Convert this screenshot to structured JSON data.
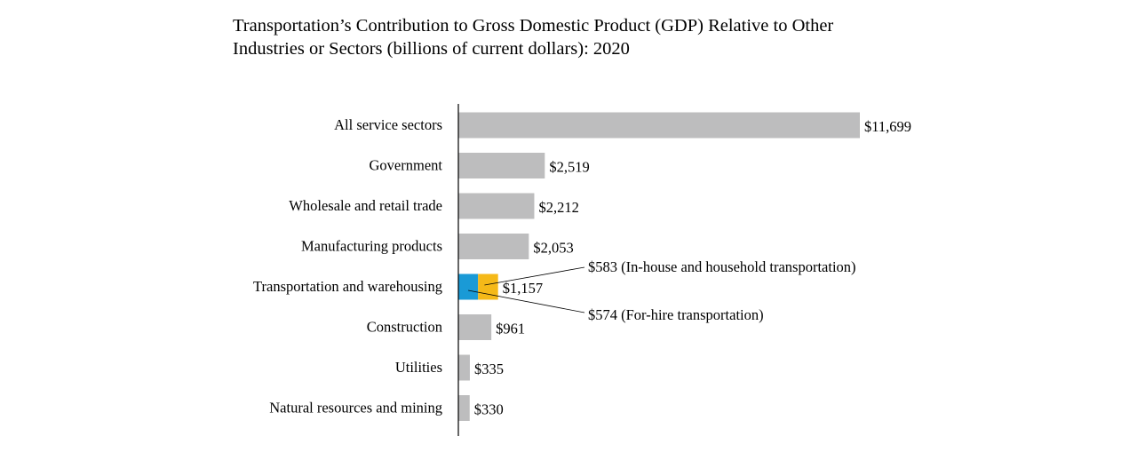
{
  "title_lines": [
    "Transportation’s Contribution to Gross Domestic Product (GDP) Relative to Other",
    "Industries or Sectors (billions of current dollars): 2020"
  ],
  "chart_data": {
    "type": "bar",
    "orientation": "horizontal",
    "title": "Transportation’s Contribution to Gross Domestic Product (GDP) Relative to Other Industries or Sectors (billions of current dollars): 2020",
    "xlabel": "",
    "ylabel": "",
    "grid": false,
    "categories": [
      "All service sectors",
      "Government",
      "Wholesale and retail trade",
      "Manufacturing products",
      "Transportation and warehousing",
      "Construction",
      "Utilities",
      "Natural resources and mining"
    ],
    "values": [
      11699,
      2519,
      2212,
      2053,
      1157,
      961,
      335,
      330
    ],
    "value_labels": [
      "$11,699",
      "$2,519",
      "$2,212",
      "$2,053",
      "$1,157",
      "$961",
      "$335",
      "$330"
    ],
    "stacked_breakdown": {
      "category": "Transportation and warehousing",
      "segments": [
        {
          "value": 574,
          "label": "$574 (For-hire transportation)",
          "color": "#1a9ad6"
        },
        {
          "value": 583,
          "label": "$583 (In-house and household transportation)",
          "color": "#f5b918"
        }
      ]
    },
    "bar_color": "#bdbdbe",
    "axis_color": "#000000"
  }
}
